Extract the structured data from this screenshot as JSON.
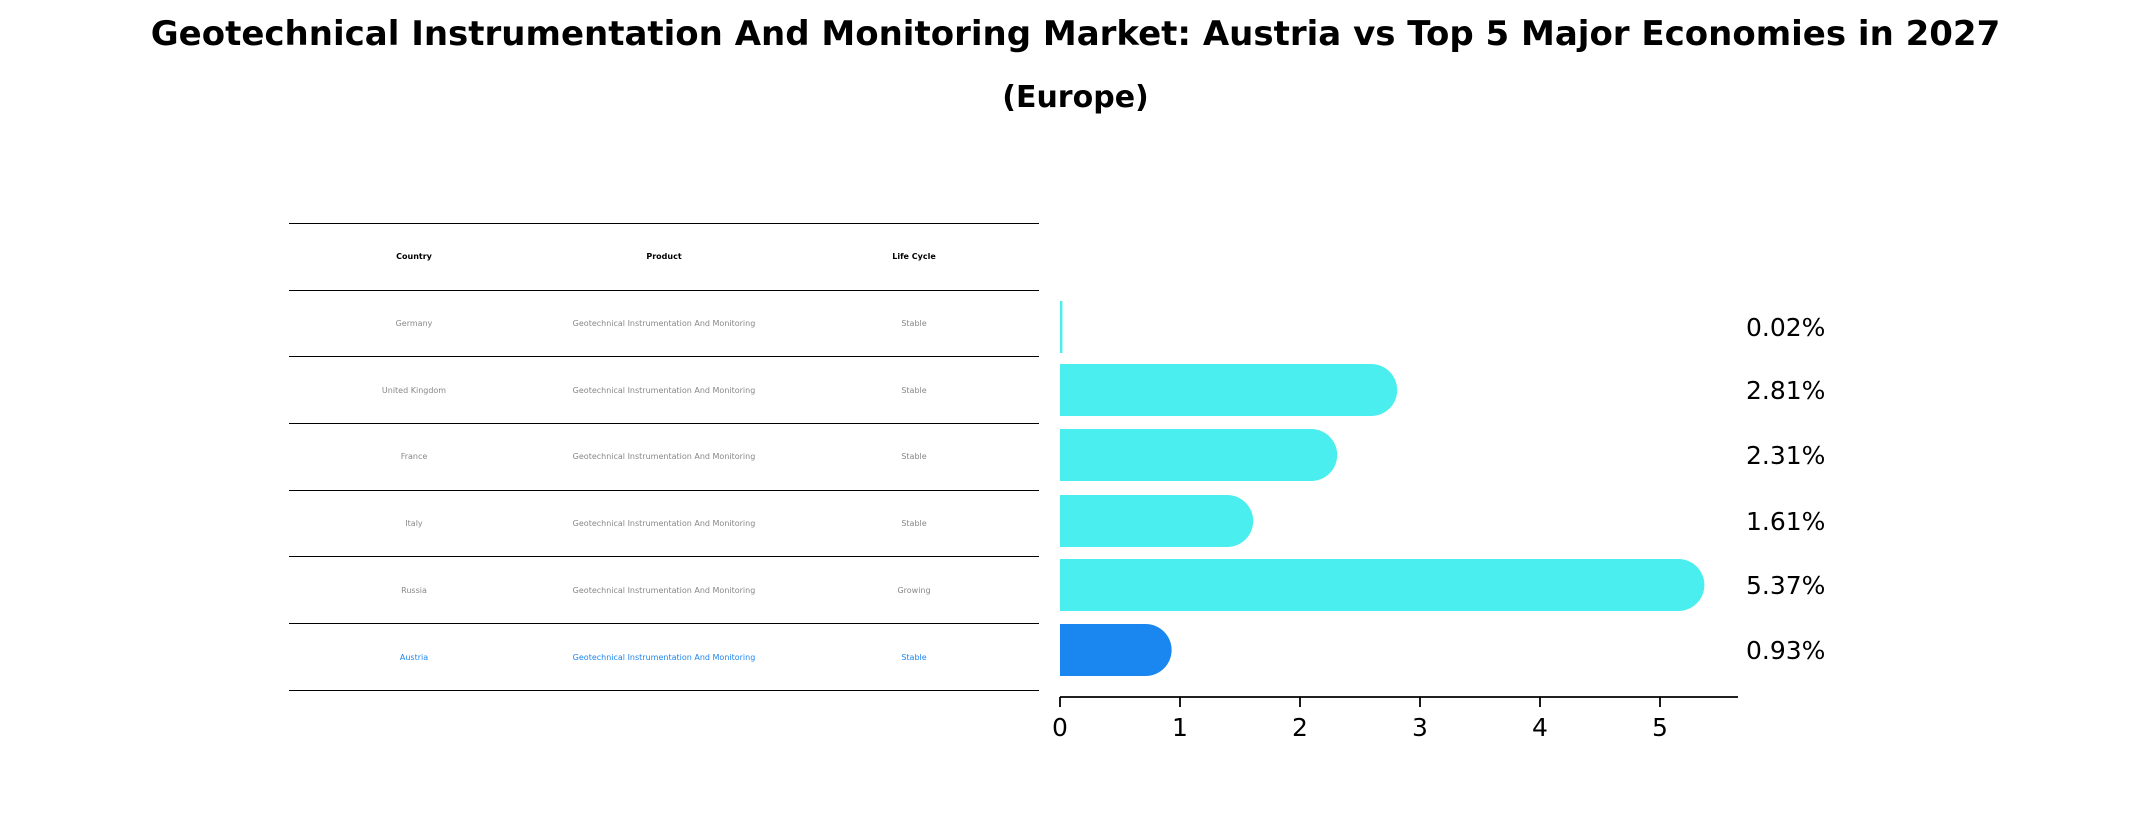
{
  "title": "Geotechnical Instrumentation And Monitoring Market: Austria vs Top 5 Major Economies in 2027",
  "subtitle": "(Europe)",
  "table": {
    "headers": [
      "Country",
      "Product",
      "Life Cycle"
    ],
    "rows": [
      {
        "country": "Germany",
        "product": "Geotechnical Instrumentation And Monitoring",
        "life_cycle": "Stable"
      },
      {
        "country": "United Kingdom",
        "product": "Geotechnical Instrumentation And Monitoring",
        "life_cycle": "Stable"
      },
      {
        "country": "France",
        "product": "Geotechnical Instrumentation And Monitoring",
        "life_cycle": "Stable"
      },
      {
        "country": "Italy",
        "product": "Geotechnical Instrumentation And Monitoring",
        "life_cycle": "Stable"
      },
      {
        "country": "Russia",
        "product": "Geotechnical Instrumentation And Monitoring",
        "life_cycle": "Growing"
      },
      {
        "country": "Austria",
        "product": "Geotechnical Instrumentation And Monitoring",
        "life_cycle": "Stable"
      }
    ]
  },
  "chart_data": {
    "type": "bar",
    "orientation": "horizontal",
    "categories": [
      "Germany",
      "United Kingdom",
      "France",
      "Italy",
      "Russia",
      "Austria"
    ],
    "values": [
      0.02,
      2.81,
      2.31,
      1.61,
      5.37,
      0.93
    ],
    "value_labels": [
      "0.02%",
      "2.81%",
      "2.31%",
      "1.61%",
      "5.37%",
      "0.93%"
    ],
    "xlim": [
      0,
      5.65
    ],
    "xticks": [
      0,
      1,
      2,
      3,
      4,
      5
    ],
    "xlabel": "",
    "ylabel": "",
    "grid": false,
    "colors": {
      "default": "#4aeeee",
      "highlight": "#1a86f0"
    },
    "highlight_category": "Austria"
  }
}
